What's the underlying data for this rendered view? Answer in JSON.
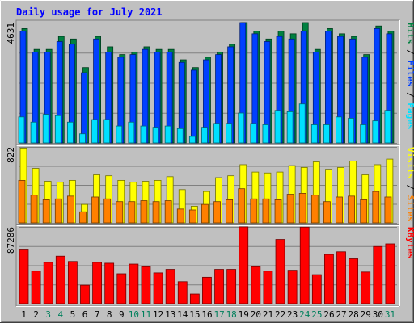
{
  "chart_data": [
    {
      "type": "bar",
      "title": "Daily usage for July 2021",
      "y_max_label": "4631",
      "ylim": [
        0,
        4631
      ],
      "grid": true,
      "legend": [
        {
          "name": "Hits",
          "color": "#008040"
        },
        {
          "name": "Files",
          "color": "#0040ff"
        },
        {
          "name": "Pages",
          "color": "#00e0ff"
        }
      ],
      "categories": [
        "1",
        "2",
        "3",
        "4",
        "5",
        "6",
        "7",
        "8",
        "9",
        "10",
        "11",
        "12",
        "13",
        "14",
        "15",
        "16",
        "17",
        "18",
        "19",
        "20",
        "21",
        "22",
        "23",
        "24",
        "25",
        "26",
        "27",
        "28",
        "29",
        "30",
        "31"
      ],
      "series": [
        {
          "name": "Hits",
          "color": "#008040",
          "values": [
            4400,
            3600,
            3600,
            4100,
            4000,
            2900,
            4100,
            3700,
            3400,
            3500,
            3700,
            3600,
            3600,
            3200,
            2900,
            3300,
            3500,
            3800,
            4800,
            4300,
            4000,
            4300,
            4200,
            4700,
            3600,
            4400,
            4200,
            4100,
            3400,
            4500,
            4300
          ]
        },
        {
          "name": "Files",
          "color": "#0040ff",
          "values": [
            4300,
            3500,
            3500,
            3900,
            3800,
            2700,
            4000,
            3500,
            3300,
            3400,
            3600,
            3500,
            3500,
            3100,
            2800,
            3200,
            3400,
            3700,
            4700,
            4200,
            3900,
            4100,
            4000,
            4300,
            3500,
            4300,
            4100,
            4000,
            3300,
            4400,
            4200
          ]
        },
        {
          "name": "Pages",
          "color": "#00e0ff",
          "values": [
            1000,
            800,
            1100,
            1050,
            800,
            350,
            900,
            900,
            650,
            800,
            650,
            600,
            650,
            550,
            250,
            600,
            750,
            750,
            1150,
            750,
            700,
            1250,
            1200,
            1500,
            700,
            700,
            1000,
            950,
            700,
            850,
            1250
          ]
        }
      ]
    },
    {
      "type": "bar",
      "y_max_label": "822",
      "ylim": [
        0,
        822
      ],
      "grid": true,
      "legend": [
        {
          "name": "Visits",
          "color": "#ffff00"
        },
        {
          "name": "Sites",
          "color": "#ff8000"
        }
      ],
      "categories": [
        "1",
        "2",
        "3",
        "4",
        "5",
        "6",
        "7",
        "8",
        "9",
        "10",
        "11",
        "12",
        "13",
        "14",
        "15",
        "16",
        "17",
        "18",
        "19",
        "20",
        "21",
        "22",
        "23",
        "24",
        "25",
        "26",
        "27",
        "28",
        "29",
        "30",
        "31"
      ],
      "series": [
        {
          "name": "Visits",
          "color": "#ffff00",
          "values": [
            810,
            590,
            450,
            440,
            460,
            200,
            520,
            510,
            460,
            440,
            450,
            460,
            500,
            360,
            180,
            340,
            490,
            510,
            630,
            550,
            540,
            550,
            620,
            600,
            660,
            580,
            600,
            670,
            520,
            630,
            690
          ]
        },
        {
          "name": "Sites",
          "color": "#ff8000",
          "values": [
            460,
            300,
            250,
            260,
            290,
            120,
            280,
            260,
            230,
            230,
            240,
            230,
            240,
            150,
            140,
            200,
            230,
            250,
            370,
            260,
            260,
            250,
            310,
            320,
            300,
            230,
            280,
            290,
            250,
            340,
            280
          ]
        }
      ]
    },
    {
      "type": "bar",
      "y_max_label": "87286",
      "ylim": [
        0,
        87286
      ],
      "grid": true,
      "legend": [
        {
          "name": "KBytes",
          "color": "#ff0000"
        }
      ],
      "categories": [
        "1",
        "2",
        "3",
        "4",
        "5",
        "6",
        "7",
        "8",
        "9",
        "10",
        "11",
        "12",
        "13",
        "14",
        "15",
        "16",
        "17",
        "18",
        "19",
        "20",
        "21",
        "22",
        "23",
        "24",
        "25",
        "26",
        "27",
        "28",
        "29",
        "30",
        "31"
      ],
      "series": [
        {
          "name": "KBytes",
          "color": "#ff0000",
          "values": [
            62000,
            37000,
            47000,
            54000,
            48000,
            21000,
            47000,
            46000,
            34000,
            45000,
            42000,
            35000,
            39000,
            25000,
            11000,
            30000,
            39000,
            39000,
            87286,
            42000,
            37000,
            73000,
            38000,
            87000,
            33000,
            56000,
            59000,
            51000,
            36000,
            65000,
            68000
          ]
        }
      ]
    }
  ],
  "x_labels": [
    {
      "text": "1",
      "color": "#000000"
    },
    {
      "text": "2",
      "color": "#000000"
    },
    {
      "text": "3",
      "color": "#00805c"
    },
    {
      "text": "4",
      "color": "#00805c"
    },
    {
      "text": "5",
      "color": "#000000"
    },
    {
      "text": "6",
      "color": "#000000"
    },
    {
      "text": "7",
      "color": "#000000"
    },
    {
      "text": "8",
      "color": "#000000"
    },
    {
      "text": "9",
      "color": "#000000"
    },
    {
      "text": "10",
      "color": "#00805c"
    },
    {
      "text": "11",
      "color": "#00805c"
    },
    {
      "text": "12",
      "color": "#000000"
    },
    {
      "text": "13",
      "color": "#000000"
    },
    {
      "text": "14",
      "color": "#000000"
    },
    {
      "text": "15",
      "color": "#000000"
    },
    {
      "text": "16",
      "color": "#000000"
    },
    {
      "text": "17",
      "color": "#00805c"
    },
    {
      "text": "18",
      "color": "#00805c"
    },
    {
      "text": "19",
      "color": "#000000"
    },
    {
      "text": "20",
      "color": "#000000"
    },
    {
      "text": "21",
      "color": "#000000"
    },
    {
      "text": "22",
      "color": "#000000"
    },
    {
      "text": "23",
      "color": "#000000"
    },
    {
      "text": "24",
      "color": "#00805c"
    },
    {
      "text": "25",
      "color": "#00805c"
    },
    {
      "text": "26",
      "color": "#000000"
    },
    {
      "text": "27",
      "color": "#000000"
    },
    {
      "text": "28",
      "color": "#000000"
    },
    {
      "text": "29",
      "color": "#000000"
    },
    {
      "text": "30",
      "color": "#000000"
    },
    {
      "text": "31",
      "color": "#00805c"
    }
  ],
  "colors": {
    "background": "#c0c0c0",
    "title": "#0000ff",
    "grid": "#808080",
    "legend_separator": "#000000"
  }
}
